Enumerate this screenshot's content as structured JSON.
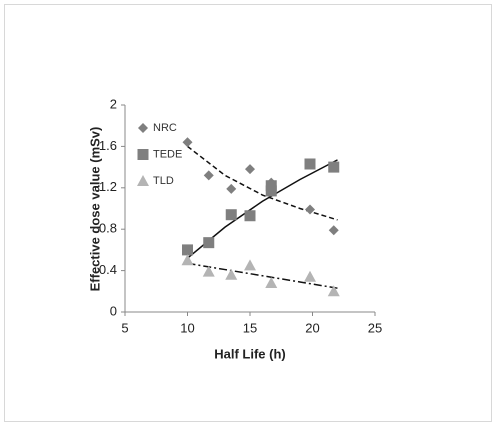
{
  "chart_data": {
    "type": "scatter",
    "xlabel": "Half Life (h)",
    "ylabel": "Effective dose value (mSv)",
    "xlim": [
      5,
      25
    ],
    "xticks": [
      5,
      10,
      15,
      20,
      25
    ],
    "ylim": [
      0,
      2
    ],
    "yticks": [
      0,
      0.4,
      0.8,
      1.2,
      1.6,
      2
    ],
    "legend": "top-left",
    "series": [
      {
        "name": "NRC",
        "color": "#7f7f7f",
        "marker": "diamond",
        "x": [
          10,
          11.7,
          13.5,
          15,
          16.7,
          16.7,
          19.8,
          21.7
        ],
        "values": [
          1.64,
          1.32,
          1.19,
          1.38,
          1.25,
          1.21,
          0.99,
          0.79
        ]
      },
      {
        "name": "TEDE",
        "color": "#7f7f7f",
        "marker": "square",
        "x": [
          10,
          11.7,
          13.5,
          15,
          16.7,
          16.7,
          19.8,
          21.7
        ],
        "values": [
          0.6,
          0.67,
          0.94,
          0.93,
          1.17,
          1.22,
          1.43,
          1.4
        ]
      },
      {
        "name": "TLD",
        "color": "#b4b4b4",
        "marker": "triangle",
        "x": [
          10,
          11.7,
          13.5,
          15,
          16.7,
          19.8,
          21.7
        ],
        "values": [
          0.5,
          0.39,
          0.36,
          0.45,
          0.28,
          0.34,
          0.2
        ]
      }
    ],
    "trendlines": [
      {
        "style": "dashed",
        "x": [
          10,
          13,
          16,
          19,
          22
        ],
        "values": [
          1.6,
          1.32,
          1.13,
          1.0,
          0.89
        ]
      },
      {
        "style": "solid",
        "x": [
          10,
          13,
          16,
          19,
          22
        ],
        "values": [
          0.52,
          0.82,
          1.07,
          1.28,
          1.47
        ]
      },
      {
        "style": "dashdot",
        "x": [
          10,
          13,
          16,
          19,
          22
        ],
        "values": [
          0.47,
          0.41,
          0.35,
          0.29,
          0.23
        ]
      }
    ]
  }
}
